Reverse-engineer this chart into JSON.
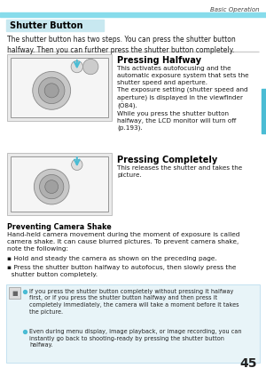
{
  "page_num": "45",
  "header_text": "Basic Operation",
  "header_bar_color": "#87DCEB",
  "section_title": "Shutter Button",
  "section_title_bg": "#C8E8F0",
  "intro_text": "The shutter button has two steps. You can press the shutter button\nhalfway. Then you can further press the shutter button completely.",
  "pressing_halfway_title": "Pressing Halfway",
  "pressing_halfway_text": "This activates autofocusing and the\nautomatic exposure system that sets the\nshutter speed and aperture.\nThe exposure setting (shutter speed and\naperture) is displayed in the viewfinder\n(Ô84).\nWhile you press the shutter button\nhalfway, the LCD monitor will turn off\n(p.193).",
  "pressing_completely_title": "Pressing Completely",
  "pressing_completely_text": "This releases the shutter and takes the\npicture.",
  "preventing_title": "Preventing Camera Shake",
  "preventing_text": "Hand-held camera movement during the moment of exposure is called\ncamera shake. It can cause blurred pictures. To prevent camera shake,\nnote the following:",
  "bullet1": "Hold and steady the camera as shown on the preceding page.",
  "bullet2": "Press the shutter button halfway to autofocus, then slowly press the\n  shutter button completely.",
  "note_bullet1": "If you press the shutter button completely without pressing it halfway\nfirst, or if you press the shutter button halfway and then press it\ncompletely immediately, the camera will take a moment before it takes\nthe picture.",
  "note_bullet2": "Even during menu display, image playback, or image recording, you can\ninstantly go back to shooting-ready by pressing the shutter button\nhalfway.",
  "note_bg": "#E8F4F8",
  "note_border_color": "#BBDDEE",
  "note_bullet_color": "#4ABCD4",
  "sidebar_color": "#4ABCD4",
  "bg_color": "#FFFFFF",
  "divider_color": "#CCCCCC",
  "text_color": "#1A1A1A",
  "header_text_color": "#444444"
}
